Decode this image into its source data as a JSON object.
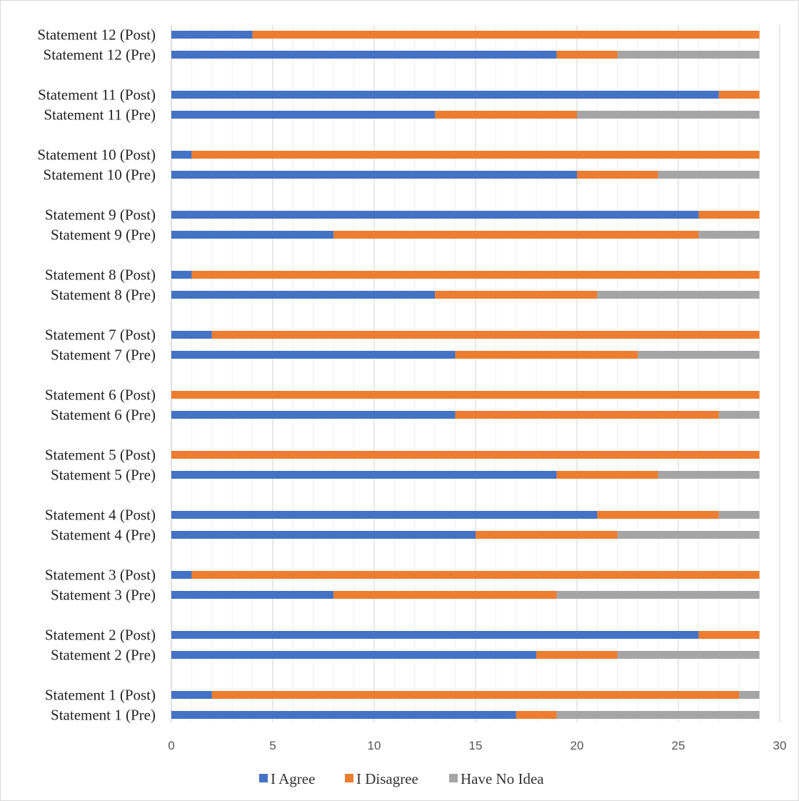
{
  "chart_data": {
    "type": "bar",
    "orientation": "horizontal",
    "stacked": true,
    "title": "",
    "xlabel": "",
    "ylabel": "",
    "xlim": [
      0,
      30
    ],
    "x_ticks": [
      0,
      5,
      10,
      15,
      20,
      25,
      30
    ],
    "gridlines": "vertical-major-and-minor",
    "legend_position": "bottom",
    "categories": [
      "Statement 12 (Post)",
      "Statement 12 (Pre)",
      "Statement 11 (Post)",
      "Statement 11 (Pre)",
      "Statement 10 (Post)",
      "Statement 10 (Pre)",
      "Statement 9 (Post)",
      "Statement 9 (Pre)",
      "Statement 8 (Post)",
      "Statement 8 (Pre)",
      "Statement 7 (Post)",
      "Statement 7 (Pre)",
      "Statement 6 (Post)",
      "Statement 6 (Pre)",
      "Statement 5 (Post)",
      "Statement 5 (Pre)",
      "Statement 4 (Post)",
      "Statement 4 (Pre)",
      "Statement 3 (Post)",
      "Statement 3 (Pre)",
      "Statement 2 (Post)",
      "Statement 2 (Pre)",
      "Statement 1 (Post)",
      "Statement 1 (Pre)"
    ],
    "series": [
      {
        "name": "I Agree",
        "color": "#4472C4",
        "values": [
          4,
          19,
          27,
          13,
          1,
          20,
          26,
          8,
          1,
          13,
          2,
          14,
          0,
          14,
          0,
          19,
          21,
          15,
          1,
          8,
          26,
          18,
          2,
          17
        ]
      },
      {
        "name": "I Disagree",
        "color": "#ED7D31",
        "values": [
          25,
          3,
          2,
          7,
          28,
          4,
          3,
          18,
          28,
          8,
          27,
          9,
          29,
          13,
          29,
          5,
          6,
          7,
          28,
          11,
          3,
          4,
          26,
          2
        ]
      },
      {
        "name": "Have No Idea",
        "color": "#A5A5A5",
        "values": [
          0,
          7,
          0,
          9,
          0,
          5,
          0,
          3,
          0,
          8,
          0,
          6,
          0,
          2,
          0,
          5,
          2,
          7,
          0,
          10,
          0,
          7,
          1,
          10
        ]
      }
    ]
  }
}
